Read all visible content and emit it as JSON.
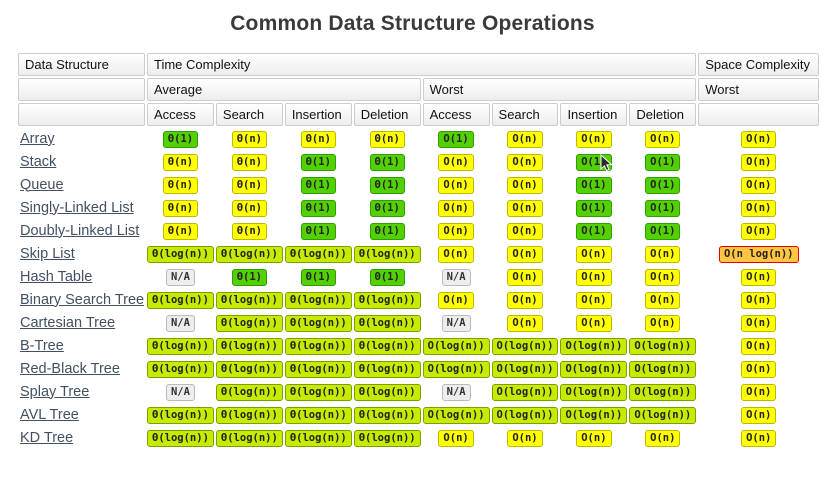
{
  "title": "Common Data Structure Operations",
  "colors": {
    "excellent": {
      "bg": "#53d000",
      "border": "#2f9e00"
    },
    "fair": {
      "bg": "#ffff00",
      "border": "#b9b900"
    },
    "good": {
      "bg": "#c8ea00",
      "border": "#74a300"
    },
    "bad": {
      "bg": "#ffc543",
      "border": "#e00000"
    },
    "na": {
      "bg": "#ededed",
      "border": "#bbbbbb"
    },
    "link": "#425062"
  },
  "table": {
    "header": {
      "col1": "Data Structure",
      "time": "Time Complexity",
      "space": "Space Complexity",
      "avg": "Average",
      "worst": "Worst",
      "space_worst": "Worst",
      "ops": [
        "Access",
        "Search",
        "Insertion",
        "Deletion"
      ]
    },
    "rows": [
      {
        "name": "Array",
        "cells": [
          {
            "text": "Θ(1)",
            "level": "excellent"
          },
          {
            "text": "Θ(n)",
            "level": "fair"
          },
          {
            "text": "Θ(n)",
            "level": "fair"
          },
          {
            "text": "Θ(n)",
            "level": "fair"
          },
          {
            "text": "O(1)",
            "level": "excellent"
          },
          {
            "text": "O(n)",
            "level": "fair"
          },
          {
            "text": "O(n)",
            "level": "fair"
          },
          {
            "text": "O(n)",
            "level": "fair"
          },
          {
            "text": "O(n)",
            "level": "fair"
          }
        ]
      },
      {
        "name": "Stack",
        "cells": [
          {
            "text": "Θ(n)",
            "level": "fair"
          },
          {
            "text": "Θ(n)",
            "level": "fair"
          },
          {
            "text": "Θ(1)",
            "level": "excellent"
          },
          {
            "text": "Θ(1)",
            "level": "excellent"
          },
          {
            "text": "O(n)",
            "level": "fair"
          },
          {
            "text": "O(n)",
            "level": "fair"
          },
          {
            "text": "O(1)",
            "level": "excellent"
          },
          {
            "text": "O(1)",
            "level": "excellent"
          },
          {
            "text": "O(n)",
            "level": "fair"
          }
        ]
      },
      {
        "name": "Queue",
        "cells": [
          {
            "text": "Θ(n)",
            "level": "fair"
          },
          {
            "text": "Θ(n)",
            "level": "fair"
          },
          {
            "text": "Θ(1)",
            "level": "excellent"
          },
          {
            "text": "Θ(1)",
            "level": "excellent"
          },
          {
            "text": "O(n)",
            "level": "fair"
          },
          {
            "text": "O(n)",
            "level": "fair"
          },
          {
            "text": "O(1)",
            "level": "excellent"
          },
          {
            "text": "O(1)",
            "level": "excellent"
          },
          {
            "text": "O(n)",
            "level": "fair"
          }
        ]
      },
      {
        "name": "Singly-Linked List",
        "cells": [
          {
            "text": "Θ(n)",
            "level": "fair"
          },
          {
            "text": "Θ(n)",
            "level": "fair"
          },
          {
            "text": "Θ(1)",
            "level": "excellent"
          },
          {
            "text": "Θ(1)",
            "level": "excellent"
          },
          {
            "text": "O(n)",
            "level": "fair"
          },
          {
            "text": "O(n)",
            "level": "fair"
          },
          {
            "text": "O(1)",
            "level": "excellent"
          },
          {
            "text": "O(1)",
            "level": "excellent"
          },
          {
            "text": "O(n)",
            "level": "fair"
          }
        ]
      },
      {
        "name": "Doubly-Linked List",
        "cells": [
          {
            "text": "Θ(n)",
            "level": "fair"
          },
          {
            "text": "Θ(n)",
            "level": "fair"
          },
          {
            "text": "Θ(1)",
            "level": "excellent"
          },
          {
            "text": "Θ(1)",
            "level": "excellent"
          },
          {
            "text": "O(n)",
            "level": "fair"
          },
          {
            "text": "O(n)",
            "level": "fair"
          },
          {
            "text": "O(1)",
            "level": "excellent"
          },
          {
            "text": "O(1)",
            "level": "excellent"
          },
          {
            "text": "O(n)",
            "level": "fair"
          }
        ]
      },
      {
        "name": "Skip List",
        "cells": [
          {
            "text": "Θ(log(n))",
            "level": "good"
          },
          {
            "text": "Θ(log(n))",
            "level": "good"
          },
          {
            "text": "Θ(log(n))",
            "level": "good"
          },
          {
            "text": "Θ(log(n))",
            "level": "good"
          },
          {
            "text": "O(n)",
            "level": "fair"
          },
          {
            "text": "O(n)",
            "level": "fair"
          },
          {
            "text": "O(n)",
            "level": "fair"
          },
          {
            "text": "O(n)",
            "level": "fair"
          },
          {
            "text": "O(n log(n))",
            "level": "bad"
          }
        ]
      },
      {
        "name": "Hash Table",
        "cells": [
          {
            "text": "N/A",
            "level": "na"
          },
          {
            "text": "Θ(1)",
            "level": "excellent"
          },
          {
            "text": "Θ(1)",
            "level": "excellent"
          },
          {
            "text": "Θ(1)",
            "level": "excellent"
          },
          {
            "text": "N/A",
            "level": "na"
          },
          {
            "text": "O(n)",
            "level": "fair"
          },
          {
            "text": "O(n)",
            "level": "fair"
          },
          {
            "text": "O(n)",
            "level": "fair"
          },
          {
            "text": "O(n)",
            "level": "fair"
          }
        ]
      },
      {
        "name": "Binary Search Tree",
        "cells": [
          {
            "text": "Θ(log(n))",
            "level": "good"
          },
          {
            "text": "Θ(log(n))",
            "level": "good"
          },
          {
            "text": "Θ(log(n))",
            "level": "good"
          },
          {
            "text": "Θ(log(n))",
            "level": "good"
          },
          {
            "text": "O(n)",
            "level": "fair"
          },
          {
            "text": "O(n)",
            "level": "fair"
          },
          {
            "text": "O(n)",
            "level": "fair"
          },
          {
            "text": "O(n)",
            "level": "fair"
          },
          {
            "text": "O(n)",
            "level": "fair"
          }
        ]
      },
      {
        "name": "Cartesian Tree",
        "cells": [
          {
            "text": "N/A",
            "level": "na"
          },
          {
            "text": "Θ(log(n))",
            "level": "good"
          },
          {
            "text": "Θ(log(n))",
            "level": "good"
          },
          {
            "text": "Θ(log(n))",
            "level": "good"
          },
          {
            "text": "N/A",
            "level": "na"
          },
          {
            "text": "O(n)",
            "level": "fair"
          },
          {
            "text": "O(n)",
            "level": "fair"
          },
          {
            "text": "O(n)",
            "level": "fair"
          },
          {
            "text": "O(n)",
            "level": "fair"
          }
        ]
      },
      {
        "name": "B-Tree",
        "cells": [
          {
            "text": "Θ(log(n))",
            "level": "good"
          },
          {
            "text": "Θ(log(n))",
            "level": "good"
          },
          {
            "text": "Θ(log(n))",
            "level": "good"
          },
          {
            "text": "Θ(log(n))",
            "level": "good"
          },
          {
            "text": "O(log(n))",
            "level": "good"
          },
          {
            "text": "O(log(n))",
            "level": "good"
          },
          {
            "text": "O(log(n))",
            "level": "good"
          },
          {
            "text": "O(log(n))",
            "level": "good"
          },
          {
            "text": "O(n)",
            "level": "fair"
          }
        ]
      },
      {
        "name": "Red-Black Tree",
        "cells": [
          {
            "text": "Θ(log(n))",
            "level": "good"
          },
          {
            "text": "Θ(log(n))",
            "level": "good"
          },
          {
            "text": "Θ(log(n))",
            "level": "good"
          },
          {
            "text": "Θ(log(n))",
            "level": "good"
          },
          {
            "text": "O(log(n))",
            "level": "good"
          },
          {
            "text": "O(log(n))",
            "level": "good"
          },
          {
            "text": "O(log(n))",
            "level": "good"
          },
          {
            "text": "O(log(n))",
            "level": "good"
          },
          {
            "text": "O(n)",
            "level": "fair"
          }
        ]
      },
      {
        "name": "Splay Tree",
        "cells": [
          {
            "text": "N/A",
            "level": "na"
          },
          {
            "text": "Θ(log(n))",
            "level": "good"
          },
          {
            "text": "Θ(log(n))",
            "level": "good"
          },
          {
            "text": "Θ(log(n))",
            "level": "good"
          },
          {
            "text": "N/A",
            "level": "na"
          },
          {
            "text": "O(log(n))",
            "level": "good"
          },
          {
            "text": "O(log(n))",
            "level": "good"
          },
          {
            "text": "O(log(n))",
            "level": "good"
          },
          {
            "text": "O(n)",
            "level": "fair"
          }
        ]
      },
      {
        "name": "AVL Tree",
        "cells": [
          {
            "text": "Θ(log(n))",
            "level": "good"
          },
          {
            "text": "Θ(log(n))",
            "level": "good"
          },
          {
            "text": "Θ(log(n))",
            "level": "good"
          },
          {
            "text": "Θ(log(n))",
            "level": "good"
          },
          {
            "text": "O(log(n))",
            "level": "good"
          },
          {
            "text": "O(log(n))",
            "level": "good"
          },
          {
            "text": "O(log(n))",
            "level": "good"
          },
          {
            "text": "O(log(n))",
            "level": "good"
          },
          {
            "text": "O(n)",
            "level": "fair"
          }
        ]
      },
      {
        "name": "KD Tree",
        "cells": [
          {
            "text": "Θ(log(n))",
            "level": "good"
          },
          {
            "text": "Θ(log(n))",
            "level": "good"
          },
          {
            "text": "Θ(log(n))",
            "level": "good"
          },
          {
            "text": "Θ(log(n))",
            "level": "good"
          },
          {
            "text": "O(n)",
            "level": "fair"
          },
          {
            "text": "O(n)",
            "level": "fair"
          },
          {
            "text": "O(n)",
            "level": "fair"
          },
          {
            "text": "O(n)",
            "level": "fair"
          },
          {
            "text": "O(n)",
            "level": "fair"
          }
        ]
      }
    ]
  }
}
